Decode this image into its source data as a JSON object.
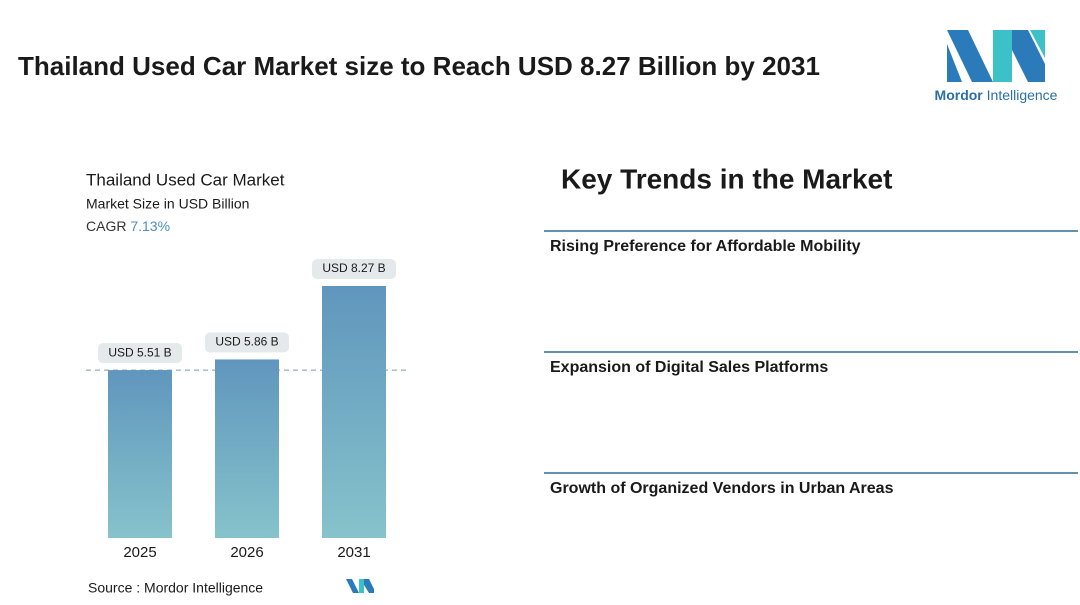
{
  "title": "Thailand Used Car Market size to Reach USD 8.27 Billion by 2031",
  "logo": {
    "brand": "Mordor",
    "suffix": "Intelligence"
  },
  "chart_data": {
    "type": "bar",
    "title": "Thailand Used Car Market",
    "subtitle": "Market Size in USD Billion",
    "cagr": {
      "label": "CAGR",
      "value": "7.13%"
    },
    "categories": [
      "2025",
      "2026",
      "2031"
    ],
    "values": [
      5.51,
      5.86,
      8.27
    ],
    "value_labels": [
      "USD 5.51 B",
      "USD 5.86 B",
      "USD 8.27 B"
    ],
    "color": "#6096bd",
    "color_bottom": "#86c3cb",
    "source": "Source :  Mordor Intelligence"
  },
  "trends": {
    "heading": "Key Trends in the Market",
    "items": [
      "Rising Preference for Affordable Mobility",
      "Expansion of Digital Sales Platforms",
      "Growth of Organized Vendors in Urban Areas"
    ]
  }
}
